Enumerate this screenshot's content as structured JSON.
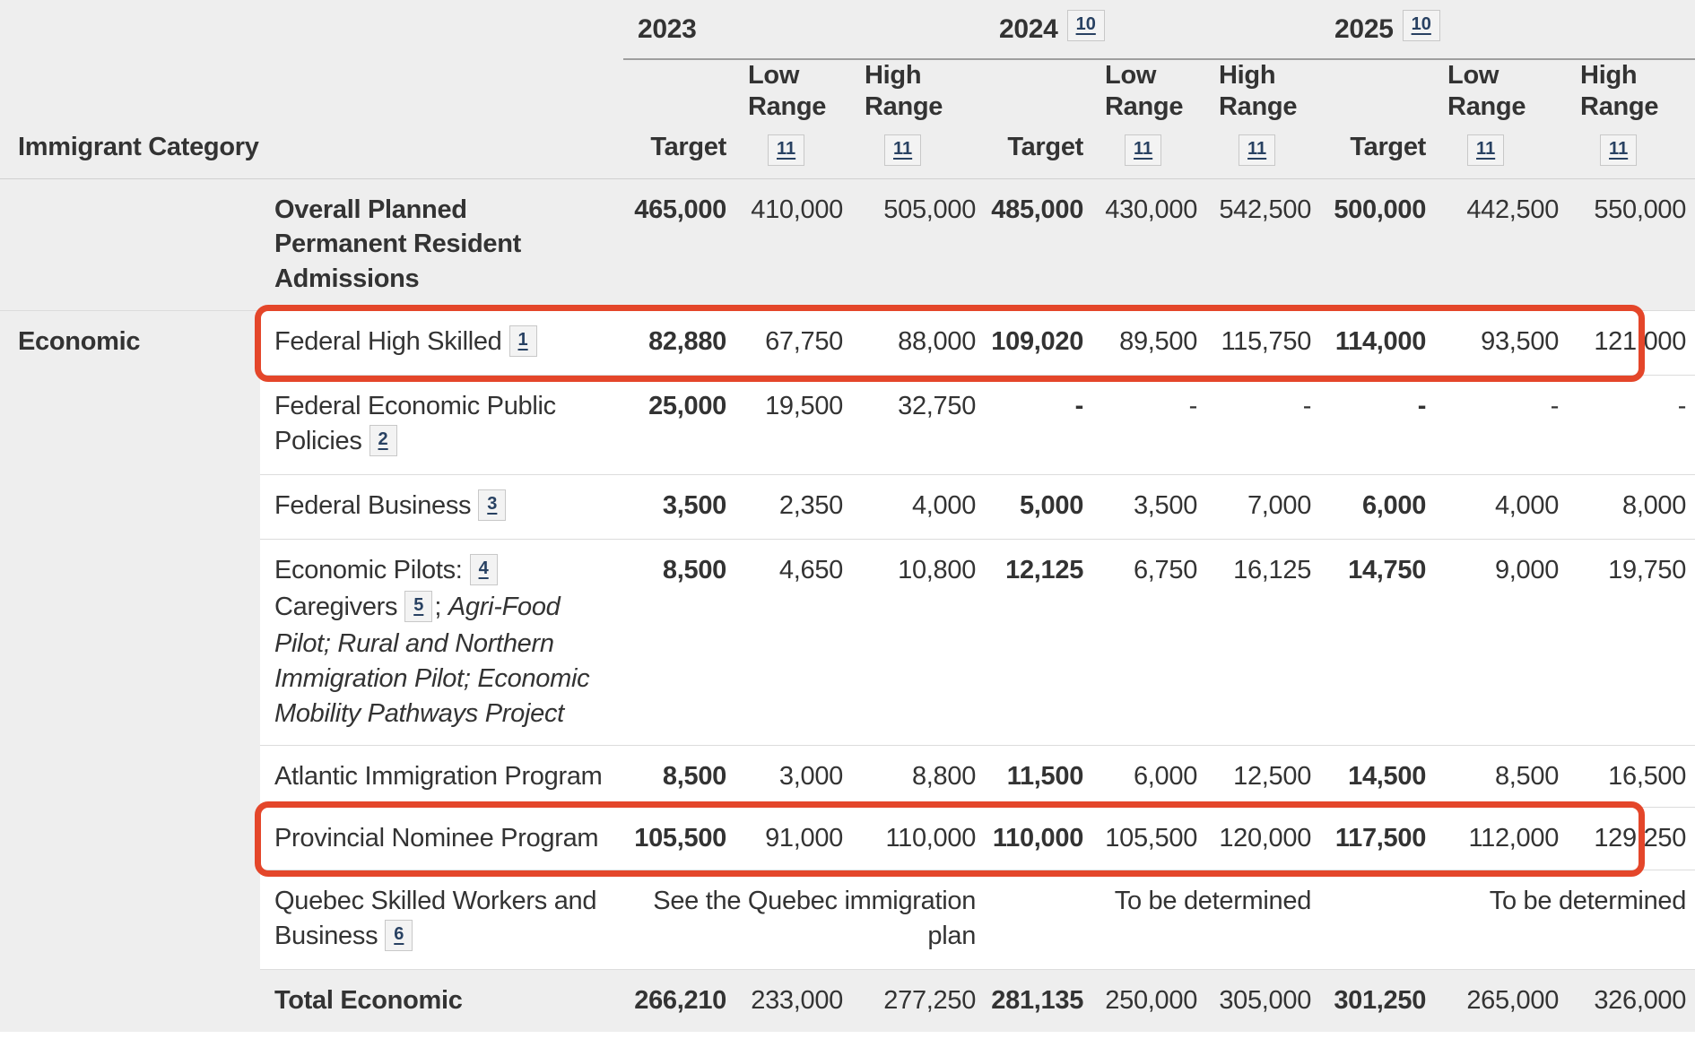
{
  "header": {
    "category_label": "Immigrant Category",
    "years": [
      {
        "label": "2023",
        "footnote": ""
      },
      {
        "label": "2024",
        "footnote": "10"
      },
      {
        "label": "2025",
        "footnote": "10"
      }
    ],
    "columns": {
      "target": "Target",
      "low_range": "Low Range",
      "high_range": "High Range",
      "range_footnote": "11"
    }
  },
  "group": {
    "label": "Economic",
    "rowspan": 8
  },
  "column_keys": [
    "2023-target",
    "2023-low-range",
    "2023-high-range",
    "2024-target",
    "2024-low-range",
    "2024-high-range",
    "2025-target",
    "2025-low-range",
    "2025-high-range"
  ],
  "rows": [
    {
      "name": "overall-planned-permanent-resident-admissions",
      "kind": "summary",
      "label_parts": [
        {
          "text": "Overall Planned Permanent Resident Admissions"
        }
      ],
      "cells": [
        {
          "v": "465,000",
          "bold": true
        },
        {
          "v": "410,000"
        },
        {
          "v": "505,000"
        },
        {
          "v": "485,000",
          "bold": true
        },
        {
          "v": "430,000"
        },
        {
          "v": "542,500"
        },
        {
          "v": "500,000",
          "bold": true
        },
        {
          "v": "442,500"
        },
        {
          "v": "550,000"
        }
      ]
    },
    {
      "name": "federal-high-skilled",
      "kind": "data",
      "group_start": true,
      "highlighted": true,
      "label_parts": [
        {
          "text": "Federal High Skilled"
        },
        {
          "fn": "1"
        }
      ],
      "cells": [
        {
          "v": "82,880",
          "bold": true
        },
        {
          "v": "67,750"
        },
        {
          "v": "88,000"
        },
        {
          "v": "109,020",
          "bold": true
        },
        {
          "v": "89,500"
        },
        {
          "v": "115,750"
        },
        {
          "v": "114,000",
          "bold": true
        },
        {
          "v": "93,500"
        },
        {
          "v": "121,000"
        }
      ]
    },
    {
      "name": "federal-economic-public-policies",
      "kind": "data",
      "label_parts": [
        {
          "text": "Federal Economic Public Policies"
        },
        {
          "fn": "2"
        }
      ],
      "cells": [
        {
          "v": "25,000",
          "bold": true
        },
        {
          "v": "19,500"
        },
        {
          "v": "32,750"
        },
        {
          "v": "-",
          "bold": true
        },
        {
          "v": "-"
        },
        {
          "v": "-"
        },
        {
          "v": "-",
          "bold": true
        },
        {
          "v": "-"
        },
        {
          "v": "-"
        }
      ]
    },
    {
      "name": "federal-business",
      "kind": "data",
      "label_parts": [
        {
          "text": "Federal Business"
        },
        {
          "fn": "3"
        }
      ],
      "cells": [
        {
          "v": "3,500",
          "bold": true
        },
        {
          "v": "2,350"
        },
        {
          "v": "4,000"
        },
        {
          "v": "5,000",
          "bold": true
        },
        {
          "v": "3,500"
        },
        {
          "v": "7,000"
        },
        {
          "v": "6,000",
          "bold": true
        },
        {
          "v": "4,000"
        },
        {
          "v": "8,000"
        }
      ]
    },
    {
      "name": "economic-pilots",
      "kind": "data",
      "label_parts": [
        {
          "text": "Economic Pilots:"
        },
        {
          "fn": "4"
        },
        {
          "text": " Caregivers"
        },
        {
          "fn": "5"
        },
        {
          "text": "; "
        },
        {
          "text": "Agri-Food Pilot; Rural and Northern Immigration Pilot; Economic Mobility Pathways Project",
          "italic": true
        }
      ],
      "cells": [
        {
          "v": "8,500",
          "bold": true
        },
        {
          "v": "4,650"
        },
        {
          "v": "10,800"
        },
        {
          "v": "12,125",
          "bold": true
        },
        {
          "v": "6,750"
        },
        {
          "v": "16,125"
        },
        {
          "v": "14,750",
          "bold": true
        },
        {
          "v": "9,000"
        },
        {
          "v": "19,750"
        }
      ]
    },
    {
      "name": "atlantic-immigration-program",
      "kind": "data",
      "label_parts": [
        {
          "text": "Atlantic Immigration Program"
        }
      ],
      "cells": [
        {
          "v": "8,500",
          "bold": true
        },
        {
          "v": "3,000"
        },
        {
          "v": "8,800"
        },
        {
          "v": "11,500",
          "bold": true
        },
        {
          "v": "6,000"
        },
        {
          "v": "12,500"
        },
        {
          "v": "14,500",
          "bold": true
        },
        {
          "v": "8,500"
        },
        {
          "v": "16,500"
        }
      ]
    },
    {
      "name": "provincial-nominee-program",
      "kind": "data",
      "highlighted": true,
      "label_parts": [
        {
          "text": "Provincial Nominee Program"
        }
      ],
      "cells": [
        {
          "v": "105,500",
          "bold": true
        },
        {
          "v": "91,000"
        },
        {
          "v": "110,000"
        },
        {
          "v": "110,000",
          "bold": true
        },
        {
          "v": "105,500"
        },
        {
          "v": "120,000"
        },
        {
          "v": "117,500",
          "bold": true
        },
        {
          "v": "112,000"
        },
        {
          "v": "129,250"
        }
      ]
    },
    {
      "name": "quebec-skilled-workers-and-business",
      "kind": "data",
      "label_parts": [
        {
          "text": "Quebec Skilled Workers and Business"
        },
        {
          "fn": "6"
        }
      ],
      "cells": [
        {
          "v": "See the Quebec immigration plan",
          "span": 3
        },
        {
          "v": "To be determined",
          "span": 3
        },
        {
          "v": "To be determined",
          "span": 3
        }
      ]
    },
    {
      "name": "total-economic",
      "kind": "summary",
      "label_parts": [
        {
          "text": "Total Economic"
        }
      ],
      "cells": [
        {
          "v": "266,210",
          "bold": true
        },
        {
          "v": "233,000"
        },
        {
          "v": "277,250"
        },
        {
          "v": "281,135",
          "bold": true
        },
        {
          "v": "250,000"
        },
        {
          "v": "305,000"
        },
        {
          "v": "301,250",
          "bold": true
        },
        {
          "v": "265,000"
        },
        {
          "v": "326,000"
        }
      ]
    }
  ],
  "annotations": {
    "highlight_color": "#e4462a",
    "highlighted_rows": [
      "federal-high-skilled",
      "provincial-nominee-program"
    ]
  },
  "colors": {
    "header_background": "#eeeeee",
    "footnote_link": "#284162",
    "row_border": "#dcdcdc",
    "text": "#333333"
  }
}
